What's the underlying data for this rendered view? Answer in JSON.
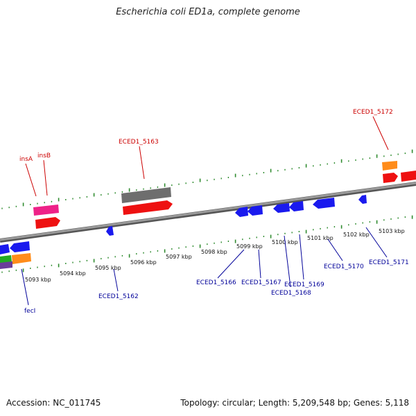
{
  "title": "Escherichia coli ED1a, complete genome",
  "footer": {
    "accession": "Accession: NC_011745",
    "topology": "Topology: circular; Length: 5,209,548 bp; Genes: 5,118"
  },
  "colors": {
    "backbone": "#8a8a8a",
    "tick": "#2e8b2e",
    "red_gene": "#ee1111",
    "blue_gene": "#1a1aee",
    "gray_gene": "#6e6e6e",
    "pink_gene": "#ee2288",
    "orange_gene": "#ff8c1a",
    "green_gene": "#22aa22",
    "purple_gene": "#6a3d9a",
    "top_label": "#cc0000",
    "bottom_label": "#000099"
  },
  "kbp_ticks": [
    "5093 kbp",
    "5094 kbp",
    "5095 kbp",
    "5096 kbp",
    "5097 kbp",
    "5098 kbp",
    "5099 kbp",
    "5100 kbp",
    "5101 kbp",
    "5102 kbp",
    "5103 kbp"
  ],
  "top_labels": [
    "insA",
    "insB",
    "ECED1_5163",
    "ECED1_5172"
  ],
  "bottom_labels": [
    "fecI",
    "ECED1_5162",
    "ECED1_5166",
    "ECED1_5167",
    "ECED1_5169",
    "ECED1_5168",
    "ECED1_5170",
    "ECED1_5171"
  ]
}
